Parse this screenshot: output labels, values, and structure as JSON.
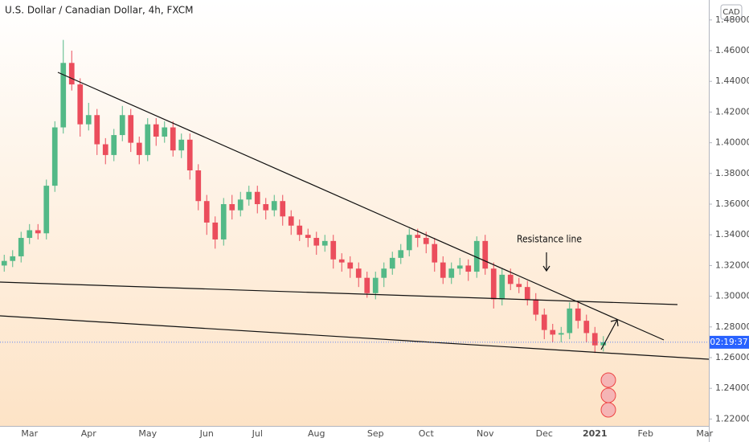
{
  "chart_data": {
    "type": "candlestick",
    "title": "U.S. Dollar / Canadian Dollar, 4h, FXCM",
    "currency": "CAD",
    "countdown": "02:19:37",
    "annotations": [
      {
        "text": "Resistance line"
      }
    ],
    "up_color": "#53b987",
    "down_color": "#eb4d5c",
    "grid": false,
    "categories": [
      null,
      null,
      null,
      "Mar",
      null,
      null,
      null,
      null,
      null,
      null,
      "Apr",
      null,
      null,
      null,
      null,
      null,
      null,
      "May",
      null,
      null,
      null,
      null,
      null,
      null,
      "Jun",
      null,
      null,
      null,
      null,
      null,
      "Jul",
      null,
      null,
      null,
      null,
      null,
      null,
      "Aug",
      null,
      null,
      null,
      null,
      null,
      null,
      "Sep",
      null,
      null,
      null,
      null,
      null,
      "Oct",
      null,
      null,
      null,
      null,
      null,
      null,
      "Nov",
      null,
      null,
      null,
      null,
      null,
      null,
      "Dec",
      null,
      null,
      null,
      null,
      null,
      "2021",
      null,
      null,
      null,
      null,
      null,
      "Feb",
      null,
      null,
      null,
      null,
      null,
      null,
      "Mar"
    ],
    "open": [
      1.32,
      1.323,
      1.326,
      1.338,
      1.343,
      1.341,
      1.372,
      1.41,
      1.452,
      1.438,
      1.412,
      1.418,
      1.399,
      1.392,
      1.405,
      1.418,
      1.4,
      1.392,
      1.412,
      1.404,
      1.41,
      1.395,
      1.402,
      1.382,
      1.362,
      1.348,
      1.337,
      1.36,
      1.356,
      1.363,
      1.368,
      1.36,
      1.356,
      1.362,
      1.352,
      1.346,
      1.34,
      1.338,
      1.333,
      1.336,
      1.324,
      1.322,
      1.318,
      1.312,
      1.302,
      1.312,
      1.318,
      1.325,
      1.33,
      1.34,
      1.338,
      1.334,
      1.322,
      1.312,
      1.318,
      1.32,
      1.316,
      1.336,
      1.318,
      1.298,
      1.314,
      1.308,
      1.306,
      1.298,
      1.288,
      1.278,
      1.275,
      1.276,
      1.292,
      1.284,
      1.276,
      1.268,
      null,
      null,
      null,
      null,
      null,
      null,
      null,
      null,
      null,
      null,
      null,
      null
    ],
    "high": [
      1.327,
      1.33,
      1.342,
      1.347,
      1.347,
      1.376,
      1.414,
      1.467,
      1.46,
      1.442,
      1.426,
      1.422,
      1.403,
      1.409,
      1.424,
      1.422,
      1.404,
      1.416,
      1.416,
      1.414,
      1.414,
      1.406,
      1.406,
      1.386,
      1.366,
      1.352,
      1.364,
      1.366,
      1.368,
      1.372,
      1.372,
      1.364,
      1.366,
      1.366,
      1.356,
      1.35,
      1.344,
      1.342,
      1.34,
      1.34,
      1.328,
      1.326,
      1.322,
      1.316,
      1.316,
      1.322,
      1.329,
      1.334,
      1.344,
      1.344,
      1.342,
      1.338,
      1.326,
      1.322,
      1.325,
      1.324,
      1.339,
      1.34,
      1.322,
      1.318,
      1.318,
      1.312,
      1.31,
      1.302,
      1.292,
      1.282,
      1.28,
      1.296,
      1.296,
      1.288,
      1.28,
      1.274,
      null,
      null,
      null,
      null,
      null,
      null,
      null,
      null,
      null,
      null,
      null,
      null
    ],
    "low": [
      1.316,
      1.319,
      1.322,
      1.334,
      1.337,
      1.337,
      1.368,
      1.406,
      1.434,
      1.404,
      1.408,
      1.392,
      1.386,
      1.388,
      1.401,
      1.394,
      1.386,
      1.388,
      1.398,
      1.4,
      1.391,
      1.39,
      1.376,
      1.356,
      1.34,
      1.331,
      1.333,
      1.35,
      1.352,
      1.359,
      1.354,
      1.35,
      1.352,
      1.346,
      1.34,
      1.336,
      1.332,
      1.327,
      1.329,
      1.318,
      1.316,
      1.312,
      1.306,
      1.299,
      1.298,
      1.306,
      1.314,
      1.321,
      1.326,
      1.332,
      1.328,
      1.316,
      1.308,
      1.308,
      1.314,
      1.31,
      1.312,
      1.314,
      1.292,
      1.294,
      1.304,
      1.302,
      1.294,
      1.284,
      1.272,
      1.27,
      1.27,
      1.272,
      1.279,
      1.27,
      1.263,
      1.264,
      null,
      null,
      null,
      null,
      null,
      null,
      null,
      null,
      null,
      null,
      null,
      null
    ],
    "close": [
      1.323,
      1.326,
      1.338,
      1.343,
      1.341,
      1.372,
      1.41,
      1.452,
      1.438,
      1.412,
      1.418,
      1.399,
      1.392,
      1.405,
      1.418,
      1.4,
      1.392,
      1.412,
      1.404,
      1.41,
      1.395,
      1.402,
      1.382,
      1.362,
      1.348,
      1.337,
      1.36,
      1.356,
      1.363,
      1.368,
      1.36,
      1.356,
      1.362,
      1.352,
      1.346,
      1.34,
      1.338,
      1.333,
      1.336,
      1.324,
      1.322,
      1.318,
      1.312,
      1.302,
      1.312,
      1.318,
      1.325,
      1.33,
      1.34,
      1.338,
      1.334,
      1.322,
      1.312,
      1.318,
      1.32,
      1.316,
      1.336,
      1.318,
      1.298,
      1.314,
      1.308,
      1.306,
      1.298,
      1.288,
      1.278,
      1.275,
      1.276,
      1.292,
      1.284,
      1.276,
      1.268,
      1.27,
      null,
      null,
      null,
      null,
      null,
      null,
      null,
      null,
      null,
      null,
      null,
      null
    ],
    "ylim": [
      1.2155,
      1.493
    ],
    "yticks": [
      {
        "value": 1.22,
        "label": "1.22000"
      },
      {
        "value": 1.24,
        "label": "1.24000"
      },
      {
        "value": 1.26,
        "label": "1.26000"
      },
      {
        "value": 1.28,
        "label": "1.28000"
      },
      {
        "value": 1.3,
        "label": "1.30000"
      },
      {
        "value": 1.32,
        "label": "1.32000"
      },
      {
        "value": 1.34,
        "label": "1.34000"
      },
      {
        "value": 1.36,
        "label": "1.36000"
      },
      {
        "value": 1.38,
        "label": "1.38000"
      },
      {
        "value": 1.4,
        "label": "1.40000"
      },
      {
        "value": 1.42,
        "label": "1.42000"
      },
      {
        "value": 1.44,
        "label": "1.44000"
      },
      {
        "value": 1.46,
        "label": "1.46000"
      },
      {
        "value": 1.48,
        "label": "1.48000"
      }
    ]
  }
}
